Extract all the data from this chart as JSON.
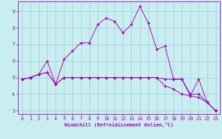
{
  "xlabel": "Windchill (Refroidissement éolien,°C)",
  "bg_color": "#c8eef0",
  "grid_color": "#a0c8d8",
  "line_color": "#aa00aa",
  "spine_color": "#aa00aa",
  "xlim": [
    -0.5,
    23.5
  ],
  "ylim": [
    2.8,
    9.6
  ],
  "xticks": [
    0,
    1,
    2,
    3,
    4,
    5,
    6,
    7,
    8,
    9,
    10,
    11,
    12,
    13,
    14,
    15,
    16,
    17,
    18,
    19,
    20,
    21,
    22,
    23
  ],
  "yticks": [
    3,
    4,
    5,
    6,
    7,
    8,
    9
  ],
  "series1_x": [
    0,
    1,
    2,
    3,
    4,
    5,
    6,
    7,
    8,
    9,
    10,
    11,
    12,
    13,
    14,
    15,
    16,
    17,
    18,
    19,
    20,
    21,
    22,
    23
  ],
  "series1_y": [
    4.9,
    5.0,
    5.2,
    5.3,
    4.6,
    5.0,
    5.0,
    5.0,
    5.0,
    5.0,
    5.0,
    5.0,
    5.0,
    5.0,
    5.0,
    5.0,
    5.0,
    4.9,
    4.9,
    4.9,
    4.0,
    4.0,
    3.5,
    3.0
  ],
  "series2_x": [
    0,
    1,
    2,
    3,
    4,
    5,
    6,
    7,
    8,
    9,
    10,
    11,
    12,
    13,
    14,
    15,
    16,
    17,
    18,
    19,
    20,
    21,
    22,
    23
  ],
  "series2_y": [
    4.9,
    5.0,
    5.2,
    5.3,
    4.6,
    5.0,
    5.0,
    5.0,
    5.0,
    5.0,
    5.0,
    5.0,
    5.0,
    5.0,
    5.0,
    5.0,
    5.0,
    4.5,
    4.3,
    4.0,
    3.9,
    3.8,
    3.5,
    3.0
  ],
  "series3_x": [
    0,
    1,
    2,
    3,
    4,
    5,
    6,
    7,
    8,
    9,
    10,
    11,
    12,
    13,
    14,
    15,
    16,
    17,
    18,
    19,
    20,
    21,
    22,
    23
  ],
  "series3_y": [
    4.9,
    5.0,
    5.2,
    6.0,
    4.6,
    6.1,
    6.6,
    7.1,
    7.1,
    8.2,
    8.6,
    8.4,
    7.7,
    8.2,
    9.3,
    8.3,
    6.7,
    6.9,
    4.9,
    4.9,
    3.9,
    4.9,
    3.5,
    3.0
  ],
  "tick_fontsize": 5,
  "xlabel_fontsize": 5,
  "marker": "+",
  "markersize": 3,
  "linewidth": 0.7
}
